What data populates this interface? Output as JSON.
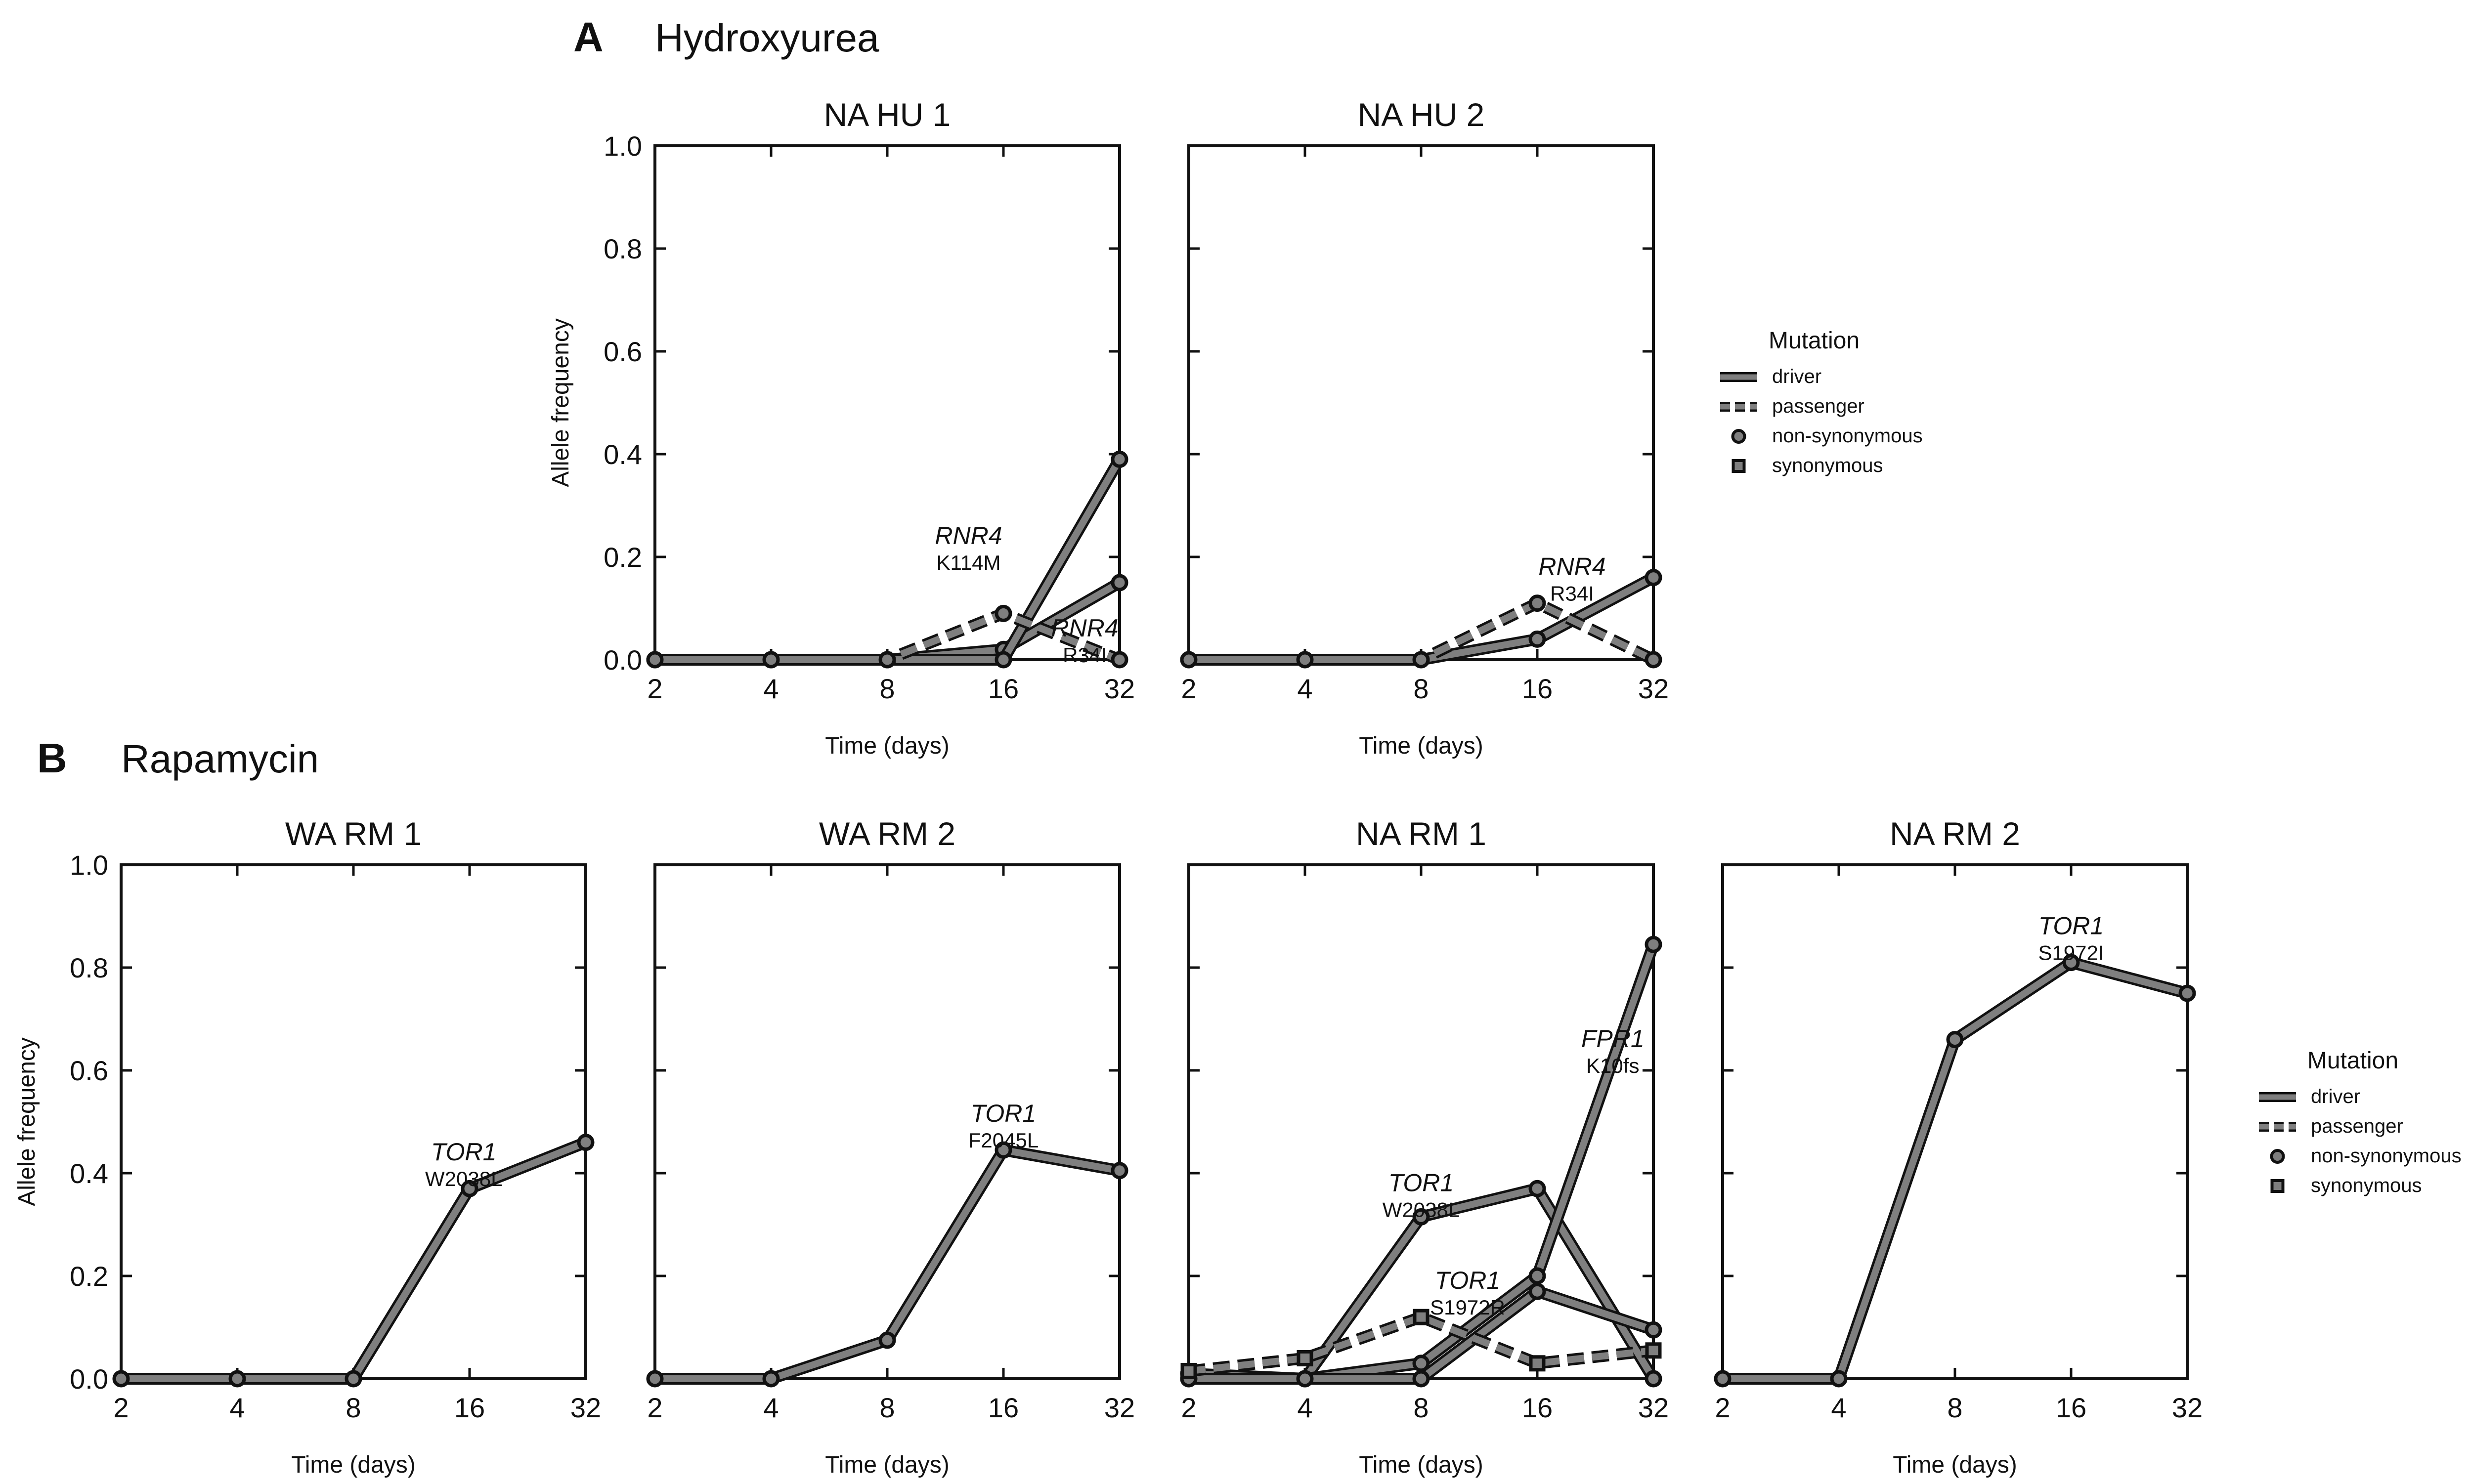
{
  "colors": {
    "line": "#7f7f7f",
    "edge": "#111111",
    "marker_fill": "#7f7f7f",
    "axis": "#111111"
  },
  "legend": {
    "title": "Mutation",
    "items": [
      {
        "label": "driver",
        "kind": "solid"
      },
      {
        "label": "passenger",
        "kind": "dashed"
      },
      {
        "label": "non-synonymous",
        "kind": "circle"
      },
      {
        "label": "synonymous",
        "kind": "square"
      }
    ]
  },
  "sections": [
    {
      "letter": "A",
      "title": "Hydroxyurea"
    },
    {
      "letter": "B",
      "title": "Rapamycin"
    }
  ],
  "chart_data": [
    {
      "type": "line",
      "title": "NA HU 1",
      "xlabel": "Time (days)",
      "ylabel": "Allele frequency",
      "x": [
        "2",
        "4",
        "8",
        "16",
        "32"
      ],
      "ylim": [
        0,
        1
      ],
      "yticks": [
        "0.0",
        "0.2",
        "0.4",
        "0.6",
        "0.8",
        "1.0"
      ],
      "series": [
        {
          "style": "solid",
          "marker": "circle",
          "values": [
            0,
            0,
            0,
            0.02,
            0.15
          ]
        },
        {
          "style": "solid",
          "marker": "circle",
          "values": [
            0,
            0,
            0,
            0,
            0.39
          ]
        },
        {
          "style": "dashed",
          "marker": "circle",
          "values": [
            0,
            0,
            0,
            0.09,
            0
          ]
        }
      ],
      "annotations": [
        {
          "gene": "RNR4",
          "mutation": "K114M",
          "x": 2.7,
          "y": 0.225
        },
        {
          "gene": "RNR4",
          "mutation": "R34I",
          "x": 3.7,
          "y": 0.045
        }
      ]
    },
    {
      "type": "line",
      "title": "NA HU 2",
      "xlabel": "Time (days)",
      "ylabel": "",
      "x": [
        "2",
        "4",
        "8",
        "16",
        "32"
      ],
      "ylim": [
        0,
        1
      ],
      "yticks": [
        "0.0",
        "0.2",
        "0.4",
        "0.6",
        "0.8",
        "1.0"
      ],
      "series": [
        {
          "style": "solid",
          "marker": "circle",
          "values": [
            0,
            0,
            0,
            0.04,
            0.16
          ]
        },
        {
          "style": "dashed",
          "marker": "circle",
          "values": [
            0,
            0,
            0,
            0.11,
            0
          ]
        }
      ],
      "annotations": [
        {
          "gene": "RNR4",
          "mutation": "R34I",
          "x": 3.3,
          "y": 0.165
        }
      ]
    },
    {
      "type": "line",
      "title": "WA RM 1",
      "xlabel": "Time (days)",
      "ylabel": "Allele frequency",
      "x": [
        "2",
        "4",
        "8",
        "16",
        "32"
      ],
      "ylim": [
        0,
        1
      ],
      "yticks": [
        "0.0",
        "0.2",
        "0.4",
        "0.6",
        "0.8",
        "1.0"
      ],
      "series": [
        {
          "style": "solid",
          "marker": "circle",
          "values": [
            0,
            0,
            0,
            0.37,
            0.46
          ]
        }
      ],
      "annotations": [
        {
          "gene": "TOR1",
          "mutation": "W2038L",
          "x": 2.95,
          "y": 0.425
        }
      ]
    },
    {
      "type": "line",
      "title": "WA RM 2",
      "xlabel": "Time (days)",
      "ylabel": "",
      "x": [
        "2",
        "4",
        "8",
        "16",
        "32"
      ],
      "ylim": [
        0,
        1
      ],
      "yticks": [
        "0.0",
        "0.2",
        "0.4",
        "0.6",
        "0.8",
        "1.0"
      ],
      "series": [
        {
          "style": "solid",
          "marker": "circle",
          "values": [
            0,
            0,
            0.075,
            0.445,
            0.405
          ]
        }
      ],
      "annotations": [
        {
          "gene": "TOR1",
          "mutation": "F2045L",
          "x": 3.0,
          "y": 0.5
        }
      ]
    },
    {
      "type": "line",
      "title": "NA RM 1",
      "xlabel": "Time (days)",
      "ylabel": "",
      "x": [
        "2",
        "4",
        "8",
        "16",
        "32"
      ],
      "ylim": [
        0,
        1
      ],
      "yticks": [
        "0.0",
        "0.2",
        "0.4",
        "0.6",
        "0.8",
        "1.0"
      ],
      "series": [
        {
          "style": "solid",
          "marker": "circle",
          "values": [
            0.01,
            0,
            0.315,
            0.37,
            0
          ]
        },
        {
          "style": "solid",
          "marker": "circle",
          "values": [
            0,
            0,
            0.03,
            0.2,
            0.845
          ]
        },
        {
          "style": "solid",
          "marker": "circle",
          "values": [
            0,
            0,
            0,
            0.17,
            0.095
          ]
        },
        {
          "style": "dashed",
          "marker": "square",
          "values": [
            0.015,
            0.04,
            0.12,
            0.03,
            0.055
          ]
        }
      ],
      "annotations": [
        {
          "gene": "FPR1",
          "mutation": "K10fs",
          "x": 3.65,
          "y": 0.645
        },
        {
          "gene": "TOR1",
          "mutation": "W2038L",
          "x": 2.0,
          "y": 0.365
        },
        {
          "gene": "TOR1",
          "mutation": "S1972R",
          "x": 2.4,
          "y": 0.175
        }
      ]
    },
    {
      "type": "line",
      "title": "NA RM 2",
      "xlabel": "Time (days)",
      "ylabel": "",
      "x": [
        "2",
        "4",
        "8",
        "16",
        "32"
      ],
      "ylim": [
        0,
        1
      ],
      "yticks": [
        "0.0",
        "0.2",
        "0.4",
        "0.6",
        "0.8",
        "1.0"
      ],
      "series": [
        {
          "style": "solid",
          "marker": "circle",
          "values": [
            0,
            0,
            0.66,
            0.81,
            0.75
          ]
        }
      ],
      "annotations": [
        {
          "gene": "TOR1",
          "mutation": "S1972I",
          "x": 3.0,
          "y": 0.865
        }
      ]
    }
  ]
}
